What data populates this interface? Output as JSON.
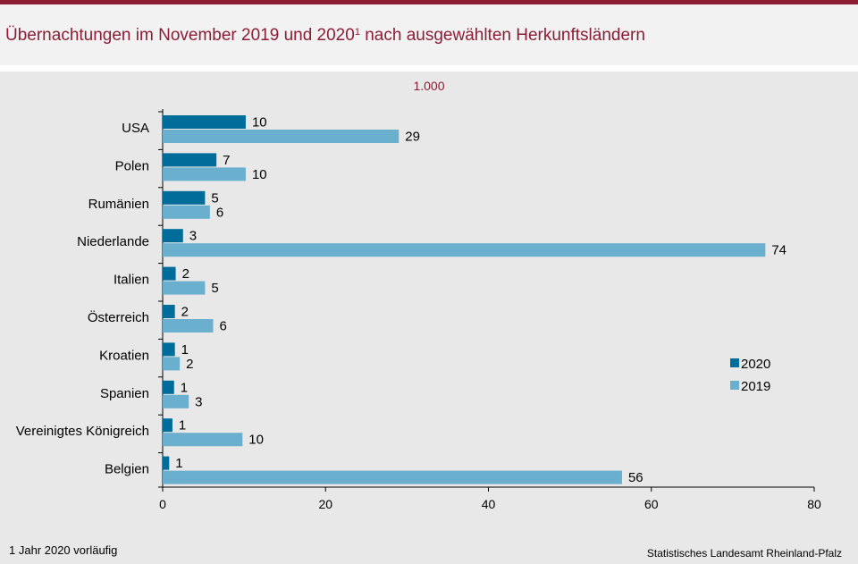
{
  "title": "Übernachtungen im November 2019 und 2020",
  "title_sup": "1",
  "footnote": "1 Jahr 2020 vorläufig",
  "source": "Statistisches Landesamt Rheinland-Pfalz",
  "chart_data": {
    "type": "bar",
    "orientation": "horizontal",
    "title": "Übernachtungen im November 2019 und 2020¹ nach ausgewählten Herkunftsländern",
    "subtitle": "1.000",
    "categories": [
      "USA",
      "Polen",
      "Rumänien",
      "Niederlande",
      "Italien",
      "Österreich",
      "Kroatien",
      "Spanien",
      "Vereinigtes Königreich",
      "Belgien"
    ],
    "series": [
      {
        "name": "2020",
        "color": "#006c9a",
        "values": [
          10.2,
          6.6,
          5.2,
          2.5,
          1.6,
          1.5,
          1.5,
          1.4,
          1.2,
          0.8
        ],
        "labels": [
          "10",
          "7",
          "5",
          "3",
          "2",
          "2",
          "1",
          "1",
          "1",
          "1"
        ]
      },
      {
        "name": "2019",
        "color": "#6aafcd",
        "values": [
          29,
          10.2,
          5.8,
          74,
          5.2,
          6.2,
          2.1,
          3.2,
          9.8,
          56.4
        ],
        "labels": [
          "29",
          "10",
          "6",
          "74",
          "5",
          "6",
          "2",
          "3",
          "10",
          "56"
        ]
      }
    ],
    "xlim": [
      0,
      80
    ],
    "xticks": [
      0,
      20,
      40,
      60,
      80
    ],
    "legend_position": "right"
  }
}
